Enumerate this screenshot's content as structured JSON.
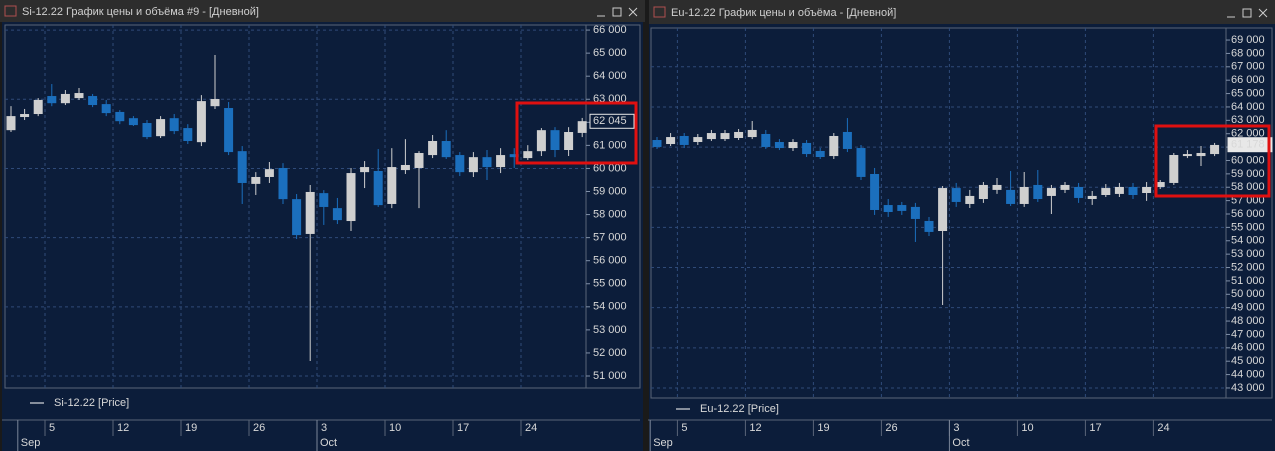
{
  "chart_data": [
    {
      "type": "candlestick",
      "title": "Si-12.22 График цены и объёма #9 - [Дневной]",
      "categories": [
        null,
        null,
        null,
        "5",
        null,
        null,
        null,
        null,
        "12",
        null,
        null,
        null,
        null,
        "19",
        null,
        null,
        null,
        null,
        "26",
        null,
        null,
        null,
        null,
        "3",
        null,
        null,
        null,
        null,
        "10",
        null,
        null,
        null,
        null,
        "17",
        null,
        null,
        null,
        null,
        "24",
        null,
        null,
        null,
        null
      ],
      "months": [
        {
          "label": "Sep",
          "start": 1
        },
        {
          "label": "Oct",
          "start": 23
        }
      ],
      "series": [
        {
          "name": "Si-12.22 [Price]",
          "up_color": "#cfcfcf",
          "down_color": "#1b6fbd",
          "open": [
            61660,
            62230,
            62360,
            63140,
            62830,
            63050,
            63140,
            62790,
            62450,
            62180,
            61970,
            61400,
            62180,
            61750,
            61140,
            62700,
            62620,
            60750,
            59330,
            59630,
            60020,
            58670,
            57160,
            58930,
            58280,
            57720,
            59840,
            59890,
            58460,
            59930,
            60020,
            60580,
            61190,
            60580,
            59840,
            60490,
            60060,
            60620,
            60450,
            60750,
            61660,
            60800,
            61540
          ],
          "high": [
            62700,
            62580,
            63050,
            63660,
            63400,
            63490,
            63230,
            62970,
            62530,
            62270,
            62100,
            62270,
            62360,
            61920,
            63180,
            64920,
            62880,
            60970,
            59840,
            60280,
            60230,
            58890,
            59280,
            59060,
            58720,
            60020,
            60320,
            60840,
            60880,
            61270,
            60750,
            61450,
            61660,
            60710,
            60710,
            60800,
            60880,
            60880,
            61010,
            61750,
            61790,
            61790,
            62190
          ],
          "low": [
            61580,
            62100,
            62270,
            62700,
            62750,
            62970,
            62660,
            62270,
            61920,
            61840,
            61270,
            61320,
            61490,
            61060,
            60970,
            62580,
            60580,
            58460,
            58850,
            59370,
            58460,
            56940,
            51650,
            57550,
            57590,
            57290,
            59150,
            58330,
            58280,
            59760,
            58280,
            60450,
            60410,
            59670,
            59630,
            59500,
            59800,
            60020,
            60370,
            60540,
            60490,
            60540,
            61360
          ],
          "close": [
            62270,
            62360,
            62970,
            62830,
            63230,
            63270,
            62750,
            62400,
            62050,
            61880,
            61360,
            62140,
            61620,
            61190,
            62920,
            63010,
            60710,
            59370,
            59630,
            59970,
            58670,
            57110,
            58980,
            58330,
            57760,
            59800,
            60060,
            58410,
            60060,
            60150,
            60670,
            61190,
            60490,
            59840,
            60490,
            60060,
            60580,
            60490,
            60750,
            61660,
            60800,
            61580,
            62050
          ]
        }
      ],
      "last_price": {
        "value": 62045,
        "label": "62 045"
      },
      "ylim": [
        50480,
        66220
      ],
      "yticks": [
        {
          "value": 51000,
          "label": "51 000"
        },
        {
          "value": 52000,
          "label": "52 000"
        },
        {
          "value": 53000,
          "label": "53 000"
        },
        {
          "value": 54000,
          "label": "54 000"
        },
        {
          "value": 55000,
          "label": "55 000"
        },
        {
          "value": 56000,
          "label": "56 000"
        },
        {
          "value": 57000,
          "label": "57 000"
        },
        {
          "value": 58000,
          "label": "58 000"
        },
        {
          "value": 59000,
          "label": "59 000"
        },
        {
          "value": 60000,
          "label": "60 000"
        },
        {
          "value": 61000,
          "label": "61 000"
        },
        {
          "value": 62000,
          "label": "62 000"
        },
        {
          "value": 63000,
          "label": "63 000"
        },
        {
          "value": 64000,
          "label": "64 000"
        },
        {
          "value": 65000,
          "label": "65 000"
        },
        {
          "value": 66000,
          "label": "66 000"
        }
      ],
      "grid": true
    },
    {
      "type": "candlestick",
      "title": "Eu-12.22 График цены и объёма - [Дневной]",
      "categories": [
        null,
        null,
        "5",
        null,
        null,
        null,
        null,
        "12",
        null,
        null,
        null,
        null,
        "19",
        null,
        null,
        null,
        null,
        "26",
        null,
        null,
        null,
        null,
        "3",
        null,
        null,
        null,
        null,
        "10",
        null,
        null,
        null,
        null,
        "17",
        null,
        null,
        null,
        null,
        "24",
        null,
        null,
        null,
        null
      ],
      "months": [
        {
          "label": "Sep",
          "start": 0
        },
        {
          "label": "Oct",
          "start": 22
        }
      ],
      "series": [
        {
          "name": "Eu-12.22 [Price]",
          "up_color": "#cfcfcf",
          "down_color": "#1b6fbd",
          "open": [
            61530,
            61230,
            61830,
            61380,
            61600,
            61600,
            61680,
            61750,
            61980,
            61380,
            60930,
            61310,
            60710,
            60330,
            62130,
            60930,
            58990,
            56670,
            56670,
            56530,
            55480,
            54730,
            57940,
            56750,
            57120,
            57800,
            57800,
            56750,
            58170,
            57350,
            57800,
            58020,
            57120,
            57420,
            57500,
            58020,
            57570,
            58020,
            58320,
            60330,
            60330,
            60480
          ],
          "high": [
            61750,
            62050,
            62050,
            61980,
            62280,
            62280,
            62350,
            62950,
            62280,
            61600,
            61600,
            61530,
            60930,
            62050,
            63170,
            61160,
            59440,
            57120,
            56900,
            56830,
            55780,
            58090,
            58320,
            57800,
            58390,
            58690,
            59210,
            59140,
            59290,
            58170,
            58390,
            58320,
            57720,
            58240,
            58320,
            58320,
            58390,
            58540,
            60560,
            60780,
            61080,
            61310
          ],
          "low": [
            60860,
            61080,
            60930,
            61160,
            61460,
            61460,
            61530,
            61600,
            60860,
            60780,
            60710,
            60260,
            60110,
            60110,
            60630,
            58540,
            55930,
            55780,
            55930,
            53910,
            54360,
            49200,
            56530,
            56450,
            56830,
            57500,
            56600,
            56530,
            56900,
            56000,
            57570,
            56830,
            56680,
            57270,
            57270,
            57120,
            56980,
            57870,
            58170,
            60180,
            59590,
            60330
          ],
          "close": [
            61010,
            61750,
            61160,
            61750,
            62050,
            62050,
            62130,
            62280,
            61010,
            60930,
            61380,
            60480,
            60260,
            61830,
            60860,
            58770,
            56300,
            56150,
            56230,
            55630,
            54660,
            57940,
            56900,
            57350,
            58170,
            58170,
            56750,
            58020,
            57120,
            57940,
            58170,
            57200,
            57350,
            57940,
            58020,
            57420,
            58020,
            58390,
            60410,
            60480,
            60560,
            61160
          ]
        }
      ],
      "last_price": {
        "value": 61178,
        "label": "61 178"
      },
      "ylim": [
        42250,
        69900
      ],
      "yticks": [
        {
          "value": 43000,
          "label": "43 000"
        },
        {
          "value": 44000,
          "label": "44 000"
        },
        {
          "value": 45000,
          "label": "45 000"
        },
        {
          "value": 46000,
          "label": "46 000"
        },
        {
          "value": 47000,
          "label": "47 000"
        },
        {
          "value": 48000,
          "label": "48 000"
        },
        {
          "value": 49000,
          "label": "49 000"
        },
        {
          "value": 50000,
          "label": "50 000"
        },
        {
          "value": 51000,
          "label": "51 000"
        },
        {
          "value": 52000,
          "label": "52 000"
        },
        {
          "value": 53000,
          "label": "53 000"
        },
        {
          "value": 54000,
          "label": "54 000"
        },
        {
          "value": 55000,
          "label": "55 000"
        },
        {
          "value": 56000,
          "label": "56 000"
        },
        {
          "value": 57000,
          "label": "57 000"
        },
        {
          "value": 58000,
          "label": "58 000"
        },
        {
          "value": 59000,
          "label": "59 000"
        },
        {
          "value": 60000,
          "label": "60 000"
        },
        {
          "value": 61000,
          "label": "61 000"
        },
        {
          "value": 62000,
          "label": "62 000"
        },
        {
          "value": 63000,
          "label": "63 000"
        },
        {
          "value": 64000,
          "label": "64 000"
        },
        {
          "value": 65000,
          "label": "65 000"
        },
        {
          "value": 66000,
          "label": "66 000"
        },
        {
          "value": 67000,
          "label": "67 000"
        },
        {
          "value": 68000,
          "label": "68 000"
        },
        {
          "value": 69000,
          "label": "69 000"
        }
      ],
      "grid": true
    }
  ]
}
